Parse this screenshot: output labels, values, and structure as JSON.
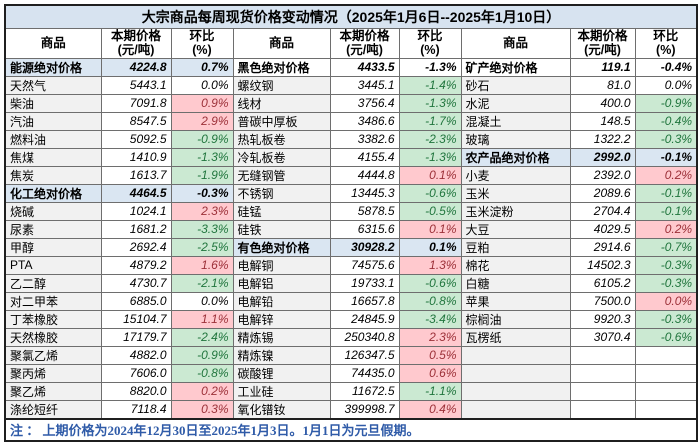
{
  "title": "大宗商品每周现货价格变动情况（2025年1月6日--2025年1月10日）",
  "header": {
    "commodity": "商品",
    "price_l1": "本期价格",
    "price_l2": "(元/吨)",
    "pct_l1": "环比",
    "pct_l2": "(%)"
  },
  "footnote": "注 ： 上期价格为2024年12月30日至2025年1月3日。1月1日为元旦假期。",
  "colors": {
    "title_bg": "#d7e3f0",
    "highlight_row": "#dae6f2",
    "up_bg": "#ffc9ce",
    "up_text": "#9c3038",
    "down_bg": "#cbe9d2",
    "down_text": "#20753d",
    "note_text": "#2f5ba8"
  },
  "rows": [
    [
      {
        "name": "能源绝对价格",
        "price": "4224.8",
        "pct": "0.7%",
        "style": "blue",
        "pct_style": "plain"
      },
      {
        "name": "黑色绝对价格",
        "price": "4433.5",
        "pct": "-1.3%",
        "style": "section",
        "pct_style": "plain"
      },
      {
        "name": "矿产绝对价格",
        "price": "119.1",
        "pct": "-0.4%",
        "style": "section",
        "pct_style": "plain"
      }
    ],
    [
      {
        "name": "天然气",
        "price": "5443.1",
        "pct": "0.0%",
        "style": "plain",
        "pct_style": "plain"
      },
      {
        "name": "螺纹钢",
        "price": "3445.1",
        "pct": "-1.4%",
        "style": "plain",
        "pct_style": "green"
      },
      {
        "name": "砂石",
        "price": "81.0",
        "pct": "0.0%",
        "style": "plain",
        "pct_style": "plain"
      }
    ],
    [
      {
        "name": "柴油",
        "price": "7091.8",
        "pct": "0.9%",
        "style": "plain",
        "pct_style": "red"
      },
      {
        "name": "线材",
        "price": "3756.4",
        "pct": "-1.3%",
        "style": "plain",
        "pct_style": "green"
      },
      {
        "name": "水泥",
        "price": "400.0",
        "pct": "-0.9%",
        "style": "plain",
        "pct_style": "green"
      }
    ],
    [
      {
        "name": "汽油",
        "price": "8547.5",
        "pct": "2.9%",
        "style": "plain",
        "pct_style": "red"
      },
      {
        "name": "普碳中厚板",
        "price": "3486.6",
        "pct": "-1.7%",
        "style": "plain",
        "pct_style": "green"
      },
      {
        "name": "混凝土",
        "price": "148.5",
        "pct": "-0.4%",
        "style": "plain",
        "pct_style": "green"
      }
    ],
    [
      {
        "name": "燃料油",
        "price": "5092.5",
        "pct": "-0.9%",
        "style": "plain",
        "pct_style": "green"
      },
      {
        "name": "热轧板卷",
        "price": "3382.6",
        "pct": "-2.3%",
        "style": "plain",
        "pct_style": "green"
      },
      {
        "name": "玻璃",
        "price": "1322.2",
        "pct": "-0.3%",
        "style": "plain",
        "pct_style": "green"
      }
    ],
    [
      {
        "name": "焦煤",
        "price": "1410.9",
        "pct": "-1.3%",
        "style": "plain",
        "pct_style": "green"
      },
      {
        "name": "冷轧板卷",
        "price": "4155.4",
        "pct": "-1.3%",
        "style": "plain",
        "pct_style": "green"
      },
      {
        "name": "农产品绝对价格",
        "price": "2992.0",
        "pct": "-0.1%",
        "style": "blue",
        "pct_style": "plain"
      }
    ],
    [
      {
        "name": "焦炭",
        "price": "1613.7",
        "pct": "-1.9%",
        "style": "plain",
        "pct_style": "green"
      },
      {
        "name": "无缝钢管",
        "price": "4444.8",
        "pct": "0.1%",
        "style": "plain",
        "pct_style": "red"
      },
      {
        "name": "小麦",
        "price": "2392.0",
        "pct": "0.2%",
        "style": "plain",
        "pct_style": "red"
      }
    ],
    [
      {
        "name": "化工绝对价格",
        "price": "4464.5",
        "pct": "-0.3%",
        "style": "blue",
        "pct_style": "plain"
      },
      {
        "name": "不锈钢",
        "price": "13445.3",
        "pct": "-0.6%",
        "style": "plain",
        "pct_style": "green"
      },
      {
        "name": "玉米",
        "price": "2089.6",
        "pct": "-0.1%",
        "style": "plain",
        "pct_style": "green"
      }
    ],
    [
      {
        "name": "烧碱",
        "price": "1024.1",
        "pct": "2.3%",
        "style": "plain",
        "pct_style": "red"
      },
      {
        "name": "硅锰",
        "price": "5878.5",
        "pct": "-0.5%",
        "style": "plain",
        "pct_style": "green"
      },
      {
        "name": "玉米淀粉",
        "price": "2704.4",
        "pct": "-0.1%",
        "style": "plain",
        "pct_style": "green"
      }
    ],
    [
      {
        "name": "尿素",
        "price": "1681.2",
        "pct": "-3.3%",
        "style": "plain",
        "pct_style": "green"
      },
      {
        "name": "硅铁",
        "price": "6315.6",
        "pct": "0.1%",
        "style": "plain",
        "pct_style": "red"
      },
      {
        "name": "大豆",
        "price": "4029.5",
        "pct": "0.2%",
        "style": "plain",
        "pct_style": "red"
      }
    ],
    [
      {
        "name": "甲醇",
        "price": "2692.4",
        "pct": "-2.5%",
        "style": "plain",
        "pct_style": "green"
      },
      {
        "name": "有色绝对价格",
        "price": "30928.2",
        "pct": "0.1%",
        "style": "blue",
        "pct_style": "plain"
      },
      {
        "name": "豆粕",
        "price": "2914.6",
        "pct": "-0.7%",
        "style": "plain",
        "pct_style": "green"
      }
    ],
    [
      {
        "name": "PTA",
        "price": "4879.2",
        "pct": "1.6%",
        "style": "plain",
        "pct_style": "red"
      },
      {
        "name": "电解铜",
        "price": "74575.6",
        "pct": "1.3%",
        "style": "plain",
        "pct_style": "red"
      },
      {
        "name": "棉花",
        "price": "14502.3",
        "pct": "-0.3%",
        "style": "plain",
        "pct_style": "green"
      }
    ],
    [
      {
        "name": "乙二醇",
        "price": "4730.7",
        "pct": "-2.1%",
        "style": "plain",
        "pct_style": "green"
      },
      {
        "name": "电解铝",
        "price": "19733.1",
        "pct": "-0.6%",
        "style": "plain",
        "pct_style": "green"
      },
      {
        "name": "白糖",
        "price": "6105.2",
        "pct": "-0.3%",
        "style": "plain",
        "pct_style": "green"
      }
    ],
    [
      {
        "name": "对二甲苯",
        "price": "6885.0",
        "pct": "0.0%",
        "style": "plain",
        "pct_style": "plain"
      },
      {
        "name": "电解铅",
        "price": "16657.8",
        "pct": "-0.8%",
        "style": "plain",
        "pct_style": "green"
      },
      {
        "name": "苹果",
        "price": "7500.0",
        "pct": "0.0%",
        "style": "plain",
        "pct_style": "red"
      }
    ],
    [
      {
        "name": "丁苯橡胶",
        "price": "15104.7",
        "pct": "1.1%",
        "style": "plain",
        "pct_style": "red"
      },
      {
        "name": "电解锌",
        "price": "24845.9",
        "pct": "-3.4%",
        "style": "plain",
        "pct_style": "green"
      },
      {
        "name": "棕榈油",
        "price": "9920.3",
        "pct": "-0.3%",
        "style": "plain",
        "pct_style": "green"
      }
    ],
    [
      {
        "name": "天然橡胶",
        "price": "17179.7",
        "pct": "-2.4%",
        "style": "plain",
        "pct_style": "green"
      },
      {
        "name": "精炼锡",
        "price": "250340.8",
        "pct": "2.3%",
        "style": "plain",
        "pct_style": "red"
      },
      {
        "name": "瓦楞纸",
        "price": "3070.4",
        "pct": "-0.6%",
        "style": "plain",
        "pct_style": "green"
      }
    ],
    [
      {
        "name": "聚氯乙烯",
        "price": "4882.0",
        "pct": "-0.9%",
        "style": "plain",
        "pct_style": "green"
      },
      {
        "name": "精炼镍",
        "price": "126347.5",
        "pct": "0.5%",
        "style": "plain",
        "pct_style": "red"
      },
      {
        "name": "",
        "price": "",
        "pct": "",
        "style": "plain",
        "pct_style": "plain"
      }
    ],
    [
      {
        "name": "聚丙烯",
        "price": "7606.0",
        "pct": "-0.8%",
        "style": "plain",
        "pct_style": "green"
      },
      {
        "name": "碳酸锂",
        "price": "74435.0",
        "pct": "0.6%",
        "style": "plain",
        "pct_style": "red"
      },
      {
        "name": "",
        "price": "",
        "pct": "",
        "style": "plain",
        "pct_style": "plain"
      }
    ],
    [
      {
        "name": "聚乙烯",
        "price": "8820.0",
        "pct": "0.2%",
        "style": "plain",
        "pct_style": "red"
      },
      {
        "name": "工业硅",
        "price": "11672.5",
        "pct": "-1.1%",
        "style": "plain",
        "pct_style": "green"
      },
      {
        "name": "",
        "price": "",
        "pct": "",
        "style": "plain",
        "pct_style": "plain"
      }
    ],
    [
      {
        "name": "涤纶短纤",
        "price": "7118.4",
        "pct": "0.3%",
        "style": "plain",
        "pct_style": "red"
      },
      {
        "name": "氧化镨钕",
        "price": "399998.7",
        "pct": "0.4%",
        "style": "plain",
        "pct_style": "red"
      },
      {
        "name": "",
        "price": "",
        "pct": "",
        "style": "plain",
        "pct_style": "plain"
      }
    ]
  ]
}
